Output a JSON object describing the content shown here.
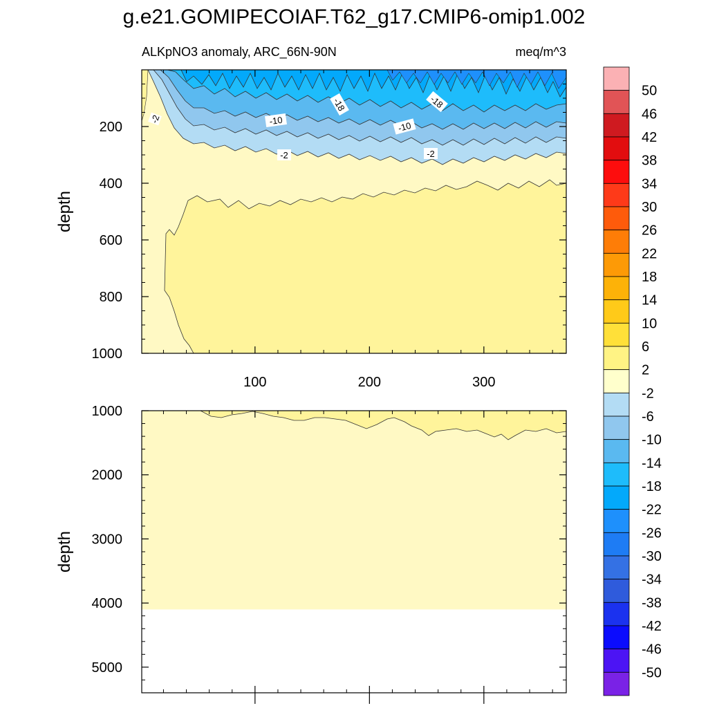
{
  "title": "g.e21.GOMIPECOIAF.T62_g17.CMIP6-omip1.002",
  "chart_data": {
    "type": "heatmap",
    "title": "g.e21.GOMIPECOIAF.T62_g17.CMIP6-omip1.002",
    "subtitle_left": "ALKpNO3 anomaly, ARC_66N-90N",
    "subtitle_right": "meq/m^3",
    "panels": [
      {
        "name": "upper",
        "ylabel": "depth",
        "xlim": [
          1,
          372
        ],
        "ylim": [
          0,
          1000
        ],
        "y_reversed": true,
        "xticks": [
          100,
          200,
          300
        ],
        "yticks": [
          200,
          400,
          600,
          800,
          1000
        ],
        "contour_labels": [
          "-2",
          "-18",
          "-10",
          "-10",
          "-18",
          "-2",
          "-2"
        ],
        "regions": [
          {
            "level_range": [
              -2,
              2
            ],
            "description": "upper band 300-450 m"
          },
          {
            "level_range": [
              2,
              6
            ],
            "description": "interior below ~450 m"
          },
          {
            "level_range": [
              -38,
              -2
            ],
            "description": "surface layer 0-300 m"
          }
        ]
      },
      {
        "name": "lower",
        "ylabel": "depth",
        "xlim": [
          1,
          372
        ],
        "ylim": [
          1000,
          5400
        ],
        "y_reversed": true,
        "yticks": [
          1000,
          2000,
          3000,
          4000,
          5000
        ],
        "data_floor_depth": 4100,
        "regions": [
          {
            "level_range": [
              2,
              6
            ],
            "description": "thin band 1000-1400 m"
          },
          {
            "level_range": [
              -2,
              2
            ],
            "description": "1000-4100 m"
          }
        ]
      }
    ],
    "colorbar": {
      "labels": [
        "50",
        "46",
        "42",
        "38",
        "34",
        "30",
        "26",
        "22",
        "18",
        "14",
        "10",
        "6",
        "2",
        "-2",
        "-6",
        "-10",
        "-14",
        "-18",
        "-22",
        "-26",
        "-30",
        "-34",
        "-38",
        "-42",
        "-46",
        "-50"
      ],
      "colors": [
        "#fbb1b4",
        "#e15456",
        "#cf1a20",
        "#e20d0f",
        "#fd0d0d",
        "#fe3a19",
        "#fe5b0b",
        "#fe7d07",
        "#fd9a06",
        "#fdb208",
        "#ffca19",
        "#ffe039",
        "#fff384",
        "#ffffcc",
        "#b3dcf4",
        "#90c7ee",
        "#5ab9f0",
        "#1ebcfb",
        "#03a9fb",
        "#1e90fc",
        "#1e7cf4",
        "#3471e4",
        "#2f5bdc",
        "#1b32ef",
        "#0b0cfe",
        "#4c14f4",
        "#7a22e6"
      ]
    }
  }
}
